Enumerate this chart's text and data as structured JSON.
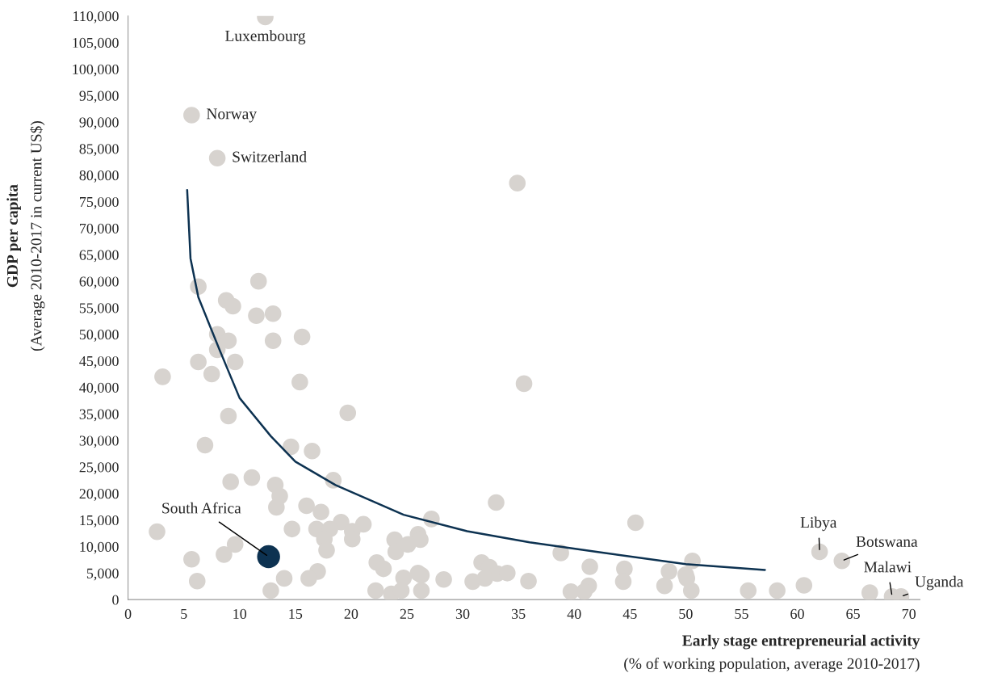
{
  "chart_data": {
    "type": "scatter",
    "xlabel": "Early stage entrepreneurial activity\n(% of working population, average 2010-2017)",
    "ylabel": "GDP per capita\n(Average 2010-2017 in current US$)",
    "xlim": [
      0,
      71
    ],
    "ylim": [
      0,
      110000
    ],
    "xticks": [
      0,
      5,
      10,
      15,
      20,
      25,
      30,
      35,
      40,
      45,
      50,
      55,
      60,
      65,
      70
    ],
    "yticks": [
      0,
      {
        "value": 5000,
        "label": "5,000"
      },
      {
        "value": 10000,
        "label": "10,000"
      },
      {
        "value": 15000,
        "label": "15,000"
      },
      {
        "value": 20000,
        "label": "20,000"
      },
      {
        "value": 25000,
        "label": "25,000"
      },
      {
        "value": 30000,
        "label": "30,000"
      },
      {
        "value": 35000,
        "label": "35,000"
      },
      {
        "value": 40000,
        "label": "40,000"
      },
      {
        "value": 45000,
        "label": "45,000"
      },
      {
        "value": 50000,
        "label": "50,000"
      },
      {
        "value": 55000,
        "label": "55,000"
      },
      {
        "value": 60000,
        "label": "60,000"
      },
      {
        "value": 65000,
        "label": "65,000"
      },
      {
        "value": 70000,
        "label": "70,000"
      },
      {
        "value": 75000,
        "label": "75,000"
      },
      {
        "value": 80000,
        "label": "80,000"
      },
      {
        "value": 85000,
        "label": "85,000"
      },
      {
        "value": 90000,
        "label": "90,000"
      },
      {
        "value": 95000,
        "label": "95,000"
      },
      {
        "value": 100000,
        "label": "100,000"
      },
      {
        "value": 105000,
        "label": "105,000"
      },
      {
        "value": 110000,
        "label": "110,000"
      }
    ],
    "grid": false,
    "legend": false,
    "marker": "circle",
    "series": [
      {
        "color": "#d7d3cf",
        "x": [
          12.3,
          5.7,
          8.0,
          34.9,
          6.3,
          11.7,
          8.8,
          9.4,
          11.5,
          13.0,
          15.6,
          8.0,
          9.0,
          13.0,
          8.0,
          6.3,
          9.6,
          3.1,
          7.5,
          15.4,
          35.5,
          19.7,
          9.0,
          14.6,
          16.5,
          6.9,
          11.1,
          9.2,
          18.4,
          13.2,
          13.3,
          16.0,
          13.6,
          33.0,
          17.3,
          27.2,
          45.5,
          19.1,
          21.1,
          14.7,
          16.9,
          18.1,
          20.1,
          17.6,
          20.1,
          26.0,
          23.9,
          26.2,
          2.6,
          17.8,
          24.0,
          25.1,
          9.6,
          8.6,
          5.7,
          38.8,
          50.6,
          22.3,
          22.9,
          31.7,
          32.4,
          33.1,
          34.0,
          41.4,
          44.5,
          48.5,
          17.0,
          50.0,
          50.1,
          30.9,
          32.0,
          28.3,
          24.7,
          26.3,
          26.0,
          14.0,
          16.2,
          6.2,
          35.9,
          44.4,
          41.3,
          48.1,
          60.6,
          12.8,
          22.2,
          23.6,
          24.5,
          26.3,
          39.7,
          40.9,
          50.5,
          55.6,
          58.2,
          66.5,
          68.5,
          69.3,
          62.0,
          64.0
        ],
        "values": [
          109800,
          91300,
          83200,
          78500,
          59000,
          60000,
          56400,
          55300,
          53500,
          53900,
          49500,
          50000,
          48800,
          48800,
          47100,
          44800,
          44800,
          42000,
          42500,
          41000,
          40700,
          35200,
          34600,
          28800,
          28000,
          29100,
          23000,
          22200,
          22500,
          21600,
          17400,
          17700,
          19500,
          18300,
          16500,
          15200,
          14500,
          14600,
          14200,
          13300,
          13300,
          13300,
          12900,
          11400,
          11400,
          12300,
          11300,
          11300,
          12800,
          9300,
          9000,
          10400,
          10400,
          8500,
          7600,
          8800,
          7300,
          7000,
          5800,
          7000,
          6100,
          4900,
          5000,
          6200,
          5800,
          5300,
          5300,
          4700,
          4000,
          3400,
          4000,
          3800,
          4100,
          4600,
          5000,
          4000,
          4000,
          3500,
          3500,
          3400,
          2600,
          2600,
          2700,
          1700,
          1700,
          1100,
          1700,
          1700,
          1500,
          1500,
          1700,
          1700,
          1700,
          1300,
          600,
          600,
          9000,
          7300
        ]
      },
      {
        "color": "#0d3251",
        "x": [
          12.6
        ],
        "values": [
          8100
        ]
      },
      {
        "type": "line",
        "color": "#0d3251",
        "marker": "none",
        "line_style": "solid",
        "x": [
          5.3,
          5.6,
          6.3,
          8.2,
          10.0,
          12.8,
          15.0,
          18.6,
          24.7,
          30.4,
          36.0,
          42.0,
          50.0,
          57.1
        ],
        "values": [
          77200,
          64300,
          57000,
          47100,
          38000,
          30800,
          26000,
          21600,
          16000,
          12900,
          10800,
          9000,
          6700,
          5600
        ]
      }
    ],
    "annotations": [
      {
        "text": "Luxembourg",
        "x": 12.3,
        "y": 109800
      },
      {
        "text": "Norway",
        "x": 5.7,
        "y": 91300
      },
      {
        "text": "Switzerland",
        "x": 8.0,
        "y": 83200
      },
      {
        "text": "South Africa",
        "x": 12.6,
        "y": 8100
      },
      {
        "text": "Libya",
        "x": 62.0,
        "y": 9000
      },
      {
        "text": "Botswana",
        "x": 64.0,
        "y": 7300
      },
      {
        "text": "Malawi",
        "x": 68.5,
        "y": 600
      },
      {
        "text": "Uganda",
        "x": 69.3,
        "y": 600
      }
    ]
  }
}
